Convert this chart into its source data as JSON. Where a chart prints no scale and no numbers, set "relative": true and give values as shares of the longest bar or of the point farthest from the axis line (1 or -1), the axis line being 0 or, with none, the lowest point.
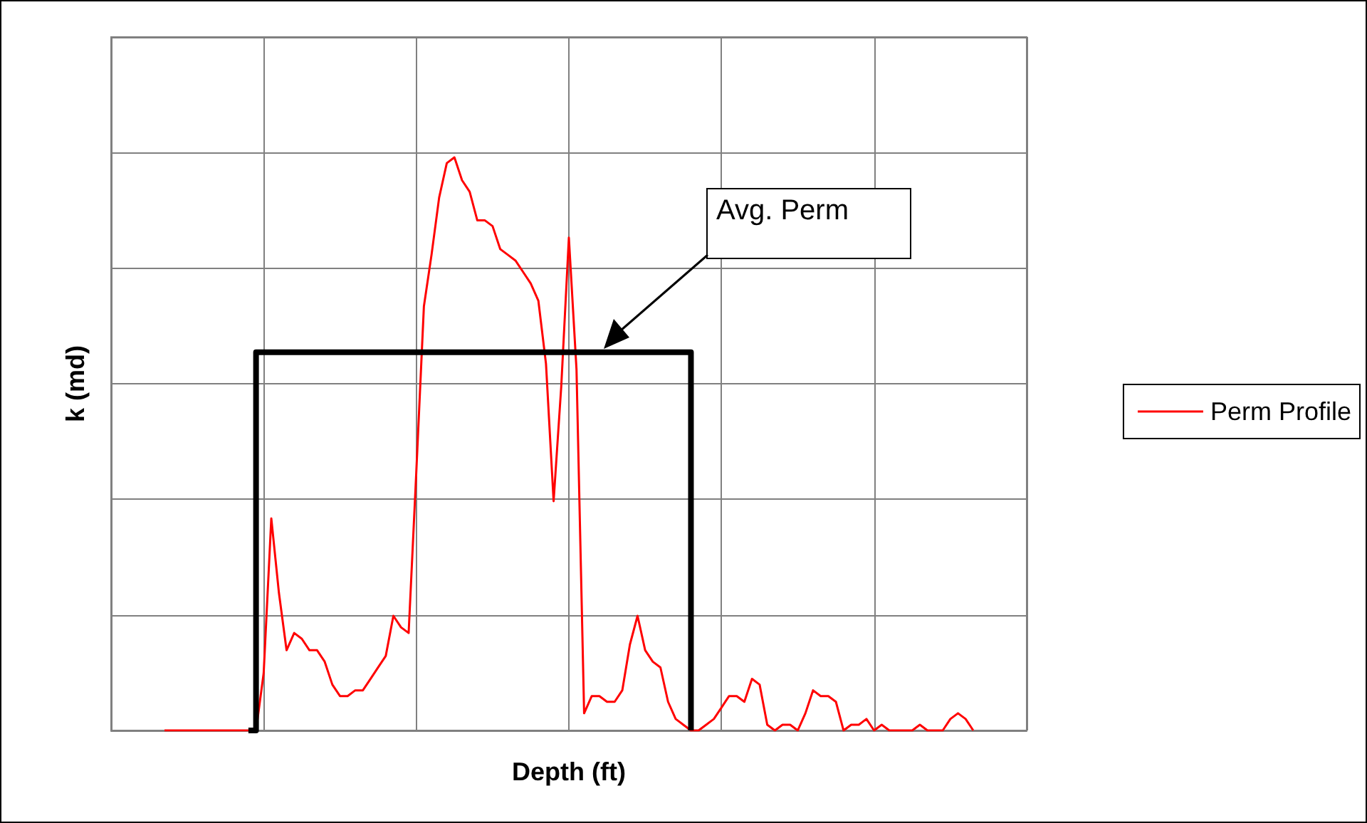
{
  "chart_data": {
    "type": "line",
    "relative": true,
    "xlabel": "Depth (ft)",
    "ylabel": "k (md)",
    "grid": true,
    "legend": "right",
    "categories": [
      null,
      null,
      null,
      null,
      null,
      null,
      null,
      null,
      null,
      null,
      null,
      null,
      null,
      null,
      null,
      null,
      null,
      null,
      null,
      null,
      null,
      null,
      null,
      null,
      null,
      null,
      null,
      null,
      null,
      null,
      null,
      null,
      null,
      null,
      null,
      null,
      null,
      null,
      null,
      null,
      null,
      null,
      null,
      null,
      null,
      null,
      null,
      null,
      null,
      null,
      null,
      null,
      null,
      null,
      null,
      null,
      null,
      null,
      null,
      null,
      null,
      null,
      null,
      null,
      null,
      null,
      null,
      null,
      null,
      null,
      null,
      null,
      null,
      null,
      null,
      null,
      null,
      null,
      null,
      null,
      null,
      null,
      null,
      null,
      null,
      null,
      null,
      null,
      null,
      null,
      null,
      null,
      null,
      null,
      null,
      null,
      null,
      null,
      null,
      null,
      null,
      null,
      null,
      null,
      null,
      null,
      null,
      null,
      null,
      null,
      null,
      null,
      null,
      null,
      null,
      null,
      null,
      null,
      null,
      null,
      null
    ],
    "annotations": [
      "Avg. Perm"
    ],
    "series": [
      {
        "name": "Perm Profile",
        "color": "#ff0000",
        "values": [
          null,
          null,
          null,
          null,
          null,
          null,
          null,
          0,
          0,
          0,
          0,
          0,
          0,
          0,
          0,
          0,
          0,
          0,
          0,
          0,
          0.1,
          0.37,
          0.24,
          0.14,
          0.17,
          0.16,
          0.14,
          0.14,
          0.12,
          0.08,
          0.06,
          0.06,
          0.07,
          0.07,
          0.09,
          0.11,
          0.13,
          0.2,
          0.18,
          0.17,
          0.45,
          0.74,
          0.83,
          0.93,
          0.99,
          1.0,
          0.96,
          0.94,
          0.89,
          0.89,
          0.88,
          0.84,
          0.83,
          0.82,
          0.8,
          0.78,
          0.75,
          0.64,
          0.4,
          0.6,
          0.86,
          0.63,
          0.03,
          0.06,
          0.06,
          0.05,
          0.05,
          0.07,
          0.15,
          0.2,
          0.14,
          0.12,
          0.11,
          0.05,
          0.02,
          0.01,
          0,
          0,
          0.01,
          0.02,
          0.04,
          0.06,
          0.06,
          0.05,
          0.09,
          0.08,
          0.01,
          0,
          0.01,
          0.01,
          0,
          0.03,
          0.07,
          0.06,
          0.06,
          0.05,
          0,
          0.01,
          0.01,
          0.02,
          0,
          0.01,
          0,
          0,
          0,
          0,
          0.01,
          0,
          0,
          0,
          0.02,
          0.03,
          0.02,
          0,
          null,
          null,
          null,
          null,
          null,
          null,
          null
        ]
      },
      {
        "type": "step",
        "color": "#000000",
        "values": [
          null,
          null,
          null,
          null,
          null,
          null,
          null,
          null,
          null,
          null,
          null,
          null,
          null,
          null,
          null,
          null,
          null,
          null,
          0,
          0.66,
          0.66,
          0.66,
          0.66,
          0.66,
          0.66,
          0.66,
          0.66,
          0.66,
          0.66,
          0.66,
          0.66,
          0.66,
          0.66,
          0.66,
          0.66,
          0.66,
          0.66,
          0.66,
          0.66,
          0.66,
          0.66,
          0.66,
          0.66,
          0.66,
          0.66,
          0.66,
          0.66,
          0.66,
          0.66,
          0.66,
          0.66,
          0.66,
          0.66,
          0.66,
          0.66,
          0.66,
          0.66,
          0.66,
          0.66,
          0.66,
          0.66,
          0.66,
          0.66,
          0.66,
          0.66,
          0.66,
          0.66,
          0.66,
          0.66,
          0.66,
          0.66,
          0.66,
          0.66,
          0.66,
          0.66,
          0.66,
          0,
          null,
          null,
          null,
          null,
          null,
          null,
          null,
          null,
          null,
          null,
          null,
          null,
          null,
          null,
          null,
          null,
          null,
          null,
          null,
          null,
          null,
          null,
          null,
          null,
          null,
          null,
          null,
          null,
          null,
          null,
          null,
          null,
          null,
          null,
          null,
          null,
          null,
          null,
          null,
          null,
          null,
          null,
          null,
          null
        ]
      }
    ]
  }
}
